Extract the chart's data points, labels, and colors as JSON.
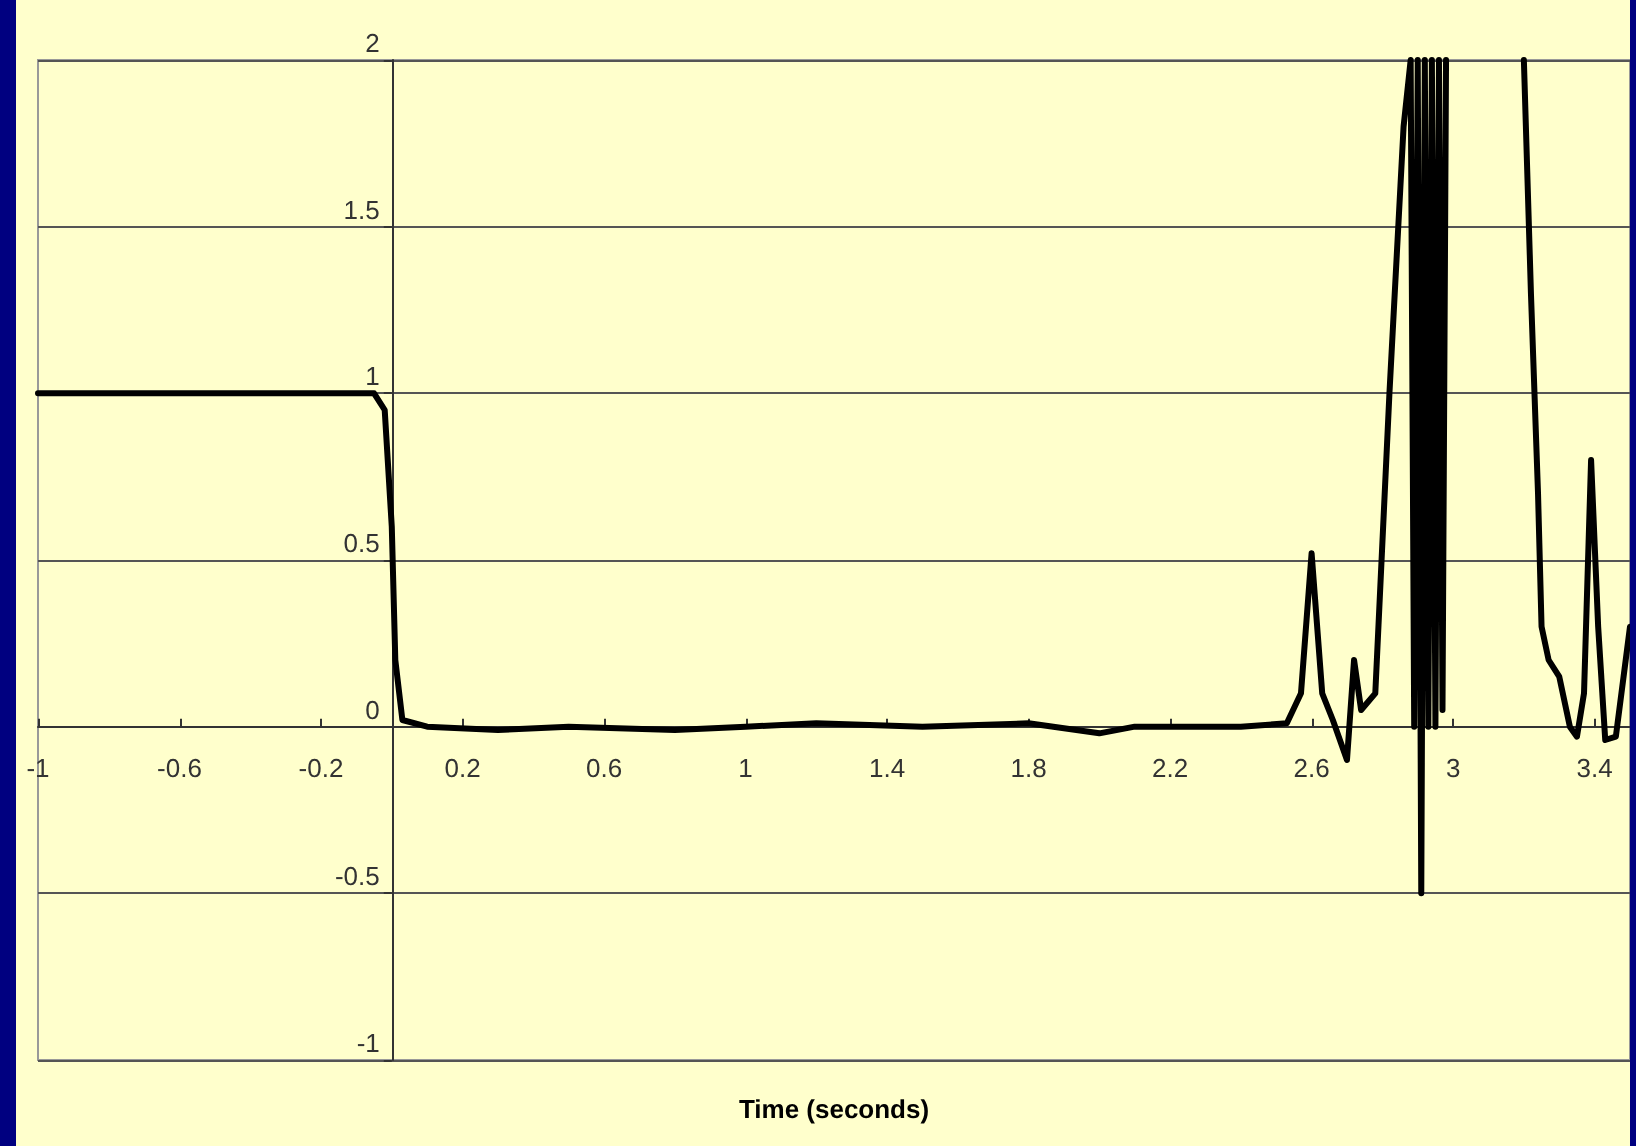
{
  "chart_data": {
    "type": "line",
    "xlabel": "Time (seconds)",
    "x": [
      -1,
      -0.05,
      -0.02,
      0,
      0.01,
      0.03,
      0.1,
      0.3,
      0.5,
      0.8,
      1.0,
      1.2,
      1.5,
      1.8,
      2.0,
      2.1,
      2.4,
      2.53,
      2.57,
      2.6,
      2.63,
      2.66,
      2.7,
      2.72,
      2.74,
      2.78,
      2.82,
      2.86,
      2.88,
      2.89,
      2.9,
      2.91,
      2.92,
      2.93,
      2.94,
      2.95,
      2.96,
      2.97,
      2.98,
      3.1,
      3.2,
      3.22,
      3.24,
      3.25,
      3.27,
      3.3,
      3.33,
      3.35,
      3.37,
      3.39,
      3.41,
      3.43,
      3.46,
      3.5
    ],
    "series": [
      {
        "color": "#000000",
        "values": [
          1,
          1,
          0.95,
          0.6,
          0.2,
          0.02,
          0,
          -0.01,
          0,
          -0.01,
          0,
          0.01,
          0,
          0.01,
          -0.02,
          0,
          0,
          0.01,
          0.1,
          0.52,
          0.1,
          0.02,
          -0.1,
          0.2,
          0.05,
          0.1,
          1.0,
          1.8,
          2,
          0,
          2,
          -0.5,
          2,
          0,
          2,
          0,
          2,
          0.05,
          2,
          null,
          2,
          1.3,
          0.7,
          0.3,
          0.2,
          0.15,
          0,
          -0.03,
          0.1,
          0.8,
          0.3,
          -0.04,
          -0.03,
          0.3
        ]
      }
    ],
    "xlim": [
      -1,
      3.5
    ],
    "xticks": [
      -1,
      -0.6,
      -0.2,
      0.2,
      0.6,
      1,
      1.4,
      1.8,
      2.2,
      2.6,
      3,
      3.4
    ],
    "ylim": [
      -1,
      2
    ],
    "yticks": [
      -1,
      -0.5,
      0,
      0.5,
      1,
      1.5,
      2
    ],
    "grid": "y",
    "marker": "none",
    "line_style": "solid"
  }
}
